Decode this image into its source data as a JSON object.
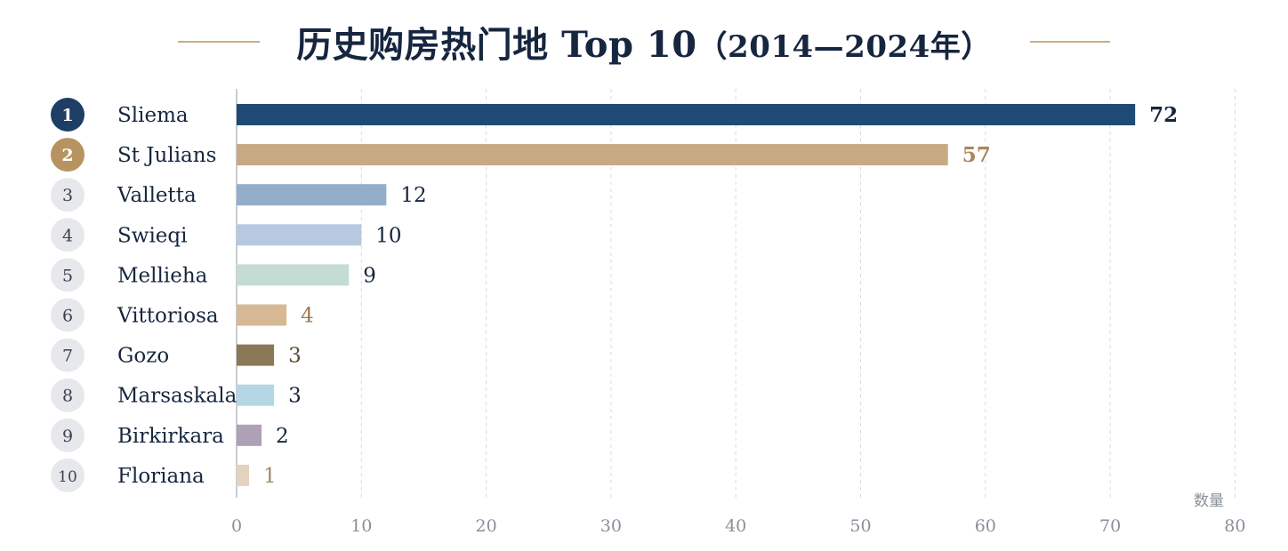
{
  "title": {
    "main": "历史购房热门地 Top 10",
    "range": "（2014—2024年）"
  },
  "chart_data": {
    "type": "bar",
    "orientation": "horizontal",
    "title": "历史购房热门地 Top 10（2014—2024年）",
    "xlabel": "数量",
    "ylabel": "",
    "xlim": [
      0,
      80
    ],
    "xticks": [
      0,
      10,
      20,
      30,
      40,
      50,
      60,
      70,
      80
    ],
    "grid": "vertical-dashed",
    "categories": [
      "Sliema",
      "St Julians",
      "Valletta",
      "Swieqi",
      "Mellieha",
      "Vittoriosa",
      "Gozo",
      "Marsaskala",
      "Birkirkara",
      "Floriana"
    ],
    "ranks": [
      "1",
      "2",
      "3",
      "4",
      "5",
      "6",
      "7",
      "8",
      "9",
      "10"
    ],
    "values": [
      72,
      57,
      12,
      10,
      9,
      4,
      3,
      3,
      2,
      1
    ],
    "bar_colors": [
      "#1f4a76",
      "#c7a983",
      "#93adcb",
      "#b7c8e1",
      "#c4dcd4",
      "#d6b994",
      "#8b7857",
      "#b5d6e5",
      "#aea0b5",
      "#e3d3bd"
    ],
    "value_label_colors": [
      "#16263f",
      "#a9875b",
      "#16263f",
      "#16263f",
      "#16263f",
      "#9a7a52",
      "#5a4d33",
      "#16263f",
      "#16263f",
      "#a08a6c"
    ],
    "rank_badge_colors": {
      "first": "#1f3e66",
      "second": "#b6935f",
      "other": "#e7e8ec"
    }
  }
}
